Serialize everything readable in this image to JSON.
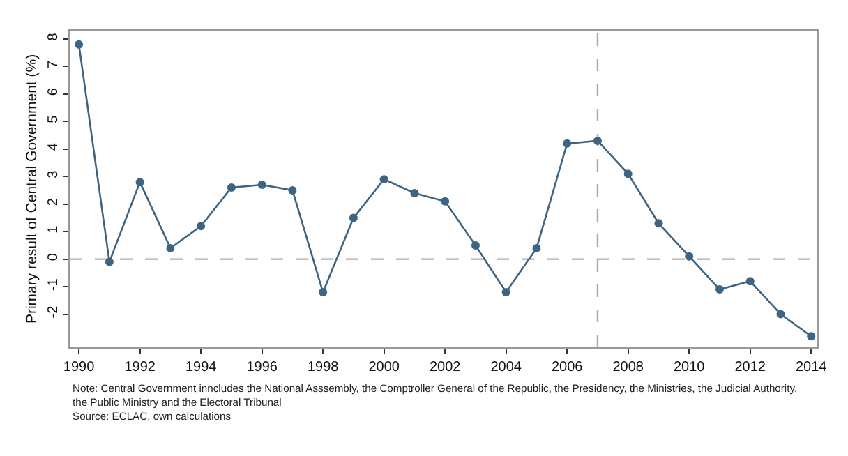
{
  "chart_data": {
    "type": "line",
    "ylabel": "Primary result of Central Government (%)",
    "x": [
      1990,
      1991,
      1992,
      1993,
      1994,
      1995,
      1996,
      1997,
      1998,
      1999,
      2000,
      2001,
      2002,
      2003,
      2004,
      2005,
      2006,
      2007,
      2008,
      2009,
      2010,
      2011,
      2012,
      2013,
      2014
    ],
    "series": [
      {
        "color": "#3d6482",
        "values": [
          7.8,
          -0.1,
          2.8,
          0.4,
          1.2,
          2.6,
          2.7,
          2.5,
          -1.2,
          1.5,
          2.9,
          2.4,
          2.1,
          0.5,
          -1.2,
          0.4,
          4.2,
          4.3,
          3.1,
          1.3,
          0.1,
          -1.1,
          -0.8,
          -2.0,
          -2.8
        ]
      }
    ],
    "xlim": [
      1989.7,
      2014.2
    ],
    "xticks": [
      1990,
      1992,
      1994,
      1996,
      1998,
      2000,
      2002,
      2004,
      2006,
      2008,
      2010,
      2012,
      2014
    ],
    "ylim": [
      -3.2,
      8.3
    ],
    "yticks": [
      -2,
      -1,
      0,
      1,
      2,
      3,
      4,
      5,
      6,
      7,
      8
    ],
    "ref_lines": [
      {
        "axis": "y",
        "value": 0,
        "color": "#aaaaaa",
        "line_style": "dashed"
      },
      {
        "axis": "x",
        "value": 2007,
        "color": "#aaaaaa",
        "line_style": "dashed"
      }
    ],
    "annotations": [
      "Note: Central Government inncludes the National Asssembly, the Comptroller General of the Republic, the Presidency, the Ministries, the Judicial Authority,\nthe Public Ministry and the Electoral Tribunal\nSource: ECLAC, own calculations"
    ],
    "grid": false,
    "marker": "circle",
    "line_style": "solid"
  }
}
